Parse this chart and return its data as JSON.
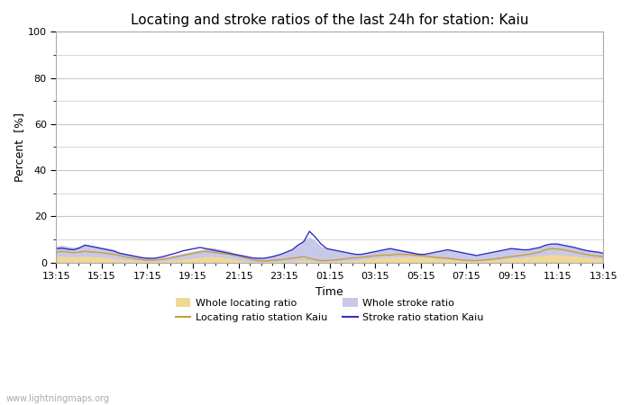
{
  "title": "Locating and stroke ratios of the last 24h for station: Kaiu",
  "xlabel": "Time",
  "ylabel": "Percent  [%]",
  "ylim": [
    0,
    100
  ],
  "yticks": [
    0,
    20,
    40,
    60,
    80,
    100
  ],
  "xtick_labels": [
    "13:15",
    "15:15",
    "17:15",
    "19:15",
    "21:15",
    "23:15",
    "01:15",
    "03:15",
    "05:15",
    "07:15",
    "09:15",
    "11:15",
    "13:15"
  ],
  "background_color": "#ffffff",
  "plot_bg_color": "#ffffff",
  "grid_color": "#c8c8c8",
  "watermark": "www.lightningmaps.org",
  "whole_locating_fill_color": "#f0d898",
  "whole_stroke_fill_color": "#c8c8e8",
  "locating_line_color": "#c8a030",
  "stroke_line_color": "#3030c8",
  "whole_locating_ratio": [
    2.5,
    2.8,
    2.6,
    2.4,
    2.5,
    2.7,
    2.6,
    2.5,
    2.3,
    2.0,
    1.8,
    1.5,
    1.2,
    1.0,
    0.8,
    0.6,
    0.5,
    0.5,
    0.6,
    0.8,
    1.0,
    1.2,
    1.5,
    1.8,
    2.0,
    2.3,
    2.5,
    2.6,
    2.5,
    2.3,
    1.8,
    1.2,
    0.8,
    0.5,
    0.3,
    0.2,
    0.2,
    0.3,
    0.4,
    0.5,
    0.5,
    0.6,
    0.8,
    1.0,
    0.8,
    0.5,
    0.3,
    0.3,
    0.5,
    0.6,
    0.7,
    0.8,
    1.0,
    1.2,
    1.5,
    1.8,
    2.0,
    2.2,
    2.3,
    2.4,
    2.5,
    2.5,
    2.4,
    2.3,
    2.2,
    2.0,
    1.8,
    1.5,
    1.2,
    1.0,
    0.8,
    0.6,
    0.5,
    0.5,
    0.6,
    0.8,
    1.0,
    1.2,
    1.5,
    1.8,
    2.0,
    2.2,
    2.5,
    2.8,
    3.0,
    3.2,
    3.5,
    3.5,
    3.2,
    3.0,
    2.8,
    2.5,
    2.2,
    2.0,
    1.8,
    1.5
  ],
  "whole_stroke_ratio": [
    7,
    7.5,
    7.0,
    6.5,
    7.0,
    8.0,
    7.5,
    7.0,
    6.5,
    6.0,
    5.5,
    4.5,
    4.0,
    3.5,
    3.0,
    2.5,
    2.2,
    2.0,
    2.2,
    2.5,
    3.0,
    3.5,
    4.0,
    4.5,
    5.0,
    5.5,
    6.0,
    6.5,
    6.0,
    5.5,
    5.0,
    4.0,
    3.5,
    3.0,
    2.5,
    2.2,
    2.0,
    2.5,
    3.0,
    3.5,
    4.5,
    5.5,
    7.5,
    10.0,
    11.0,
    9.5,
    7.0,
    6.0,
    5.5,
    5.0,
    4.5,
    4.0,
    3.5,
    3.5,
    4.0,
    4.5,
    5.0,
    5.5,
    6.0,
    5.8,
    5.5,
    5.0,
    4.5,
    4.0,
    3.5,
    4.0,
    4.5,
    5.0,
    5.5,
    5.0,
    4.5,
    4.0,
    3.5,
    3.0,
    3.5,
    4.0,
    4.5,
    5.0,
    5.5,
    6.0,
    6.0,
    5.5,
    5.5,
    6.0,
    6.5,
    7.5,
    8.0,
    8.0,
    7.5,
    7.0,
    6.5,
    6.0,
    5.5,
    5.0,
    4.5,
    4.0
  ],
  "locating_ratio": [
    4.5,
    4.8,
    4.5,
    4.2,
    4.5,
    4.8,
    4.6,
    4.4,
    4.2,
    3.8,
    3.5,
    3.0,
    2.5,
    2.0,
    1.5,
    1.2,
    1.0,
    1.0,
    1.2,
    1.5,
    2.0,
    2.5,
    3.0,
    3.5,
    4.0,
    4.5,
    4.8,
    4.5,
    4.2,
    3.8,
    3.5,
    3.0,
    2.5,
    1.8,
    1.2,
    0.8,
    0.6,
    0.8,
    1.0,
    1.2,
    1.5,
    1.8,
    2.2,
    2.5,
    1.8,
    1.2,
    0.8,
    0.8,
    1.0,
    1.2,
    1.5,
    1.8,
    2.0,
    2.2,
    2.5,
    2.8,
    3.0,
    3.2,
    3.2,
    3.5,
    3.5,
    3.5,
    3.2,
    3.0,
    2.8,
    2.5,
    2.2,
    2.0,
    1.8,
    1.5,
    1.2,
    1.0,
    0.8,
    0.8,
    1.0,
    1.2,
    1.5,
    1.8,
    2.2,
    2.5,
    2.8,
    3.2,
    3.5,
    4.0,
    4.5,
    5.5,
    6.0,
    5.8,
    5.5,
    5.0,
    4.5,
    4.0,
    3.5,
    3.0,
    2.8,
    2.5
  ],
  "stroke_ratio": [
    6.0,
    6.2,
    5.8,
    5.5,
    6.2,
    7.5,
    7.0,
    6.5,
    6.0,
    5.5,
    5.0,
    4.0,
    3.5,
    3.0,
    2.5,
    2.0,
    1.8,
    1.8,
    2.2,
    2.8,
    3.5,
    4.2,
    5.0,
    5.5,
    6.0,
    6.5,
    6.0,
    5.5,
    5.0,
    4.5,
    4.0,
    3.5,
    3.0,
    2.5,
    2.0,
    1.8,
    1.8,
    2.2,
    2.8,
    3.5,
    4.5,
    5.5,
    7.5,
    9.0,
    13.5,
    11.0,
    8.0,
    6.0,
    5.5,
    5.0,
    4.5,
    4.0,
    3.5,
    3.5,
    4.0,
    4.5,
    5.0,
    5.5,
    6.0,
    5.5,
    5.0,
    4.5,
    4.0,
    3.5,
    3.5,
    4.0,
    4.5,
    5.0,
    5.5,
    5.0,
    4.5,
    4.0,
    3.5,
    3.0,
    3.5,
    4.0,
    4.5,
    5.0,
    5.5,
    6.0,
    5.8,
    5.5,
    5.5,
    6.0,
    6.5,
    7.5,
    8.0,
    8.0,
    7.5,
    7.0,
    6.5,
    5.8,
    5.2,
    4.8,
    4.5,
    4.0
  ]
}
